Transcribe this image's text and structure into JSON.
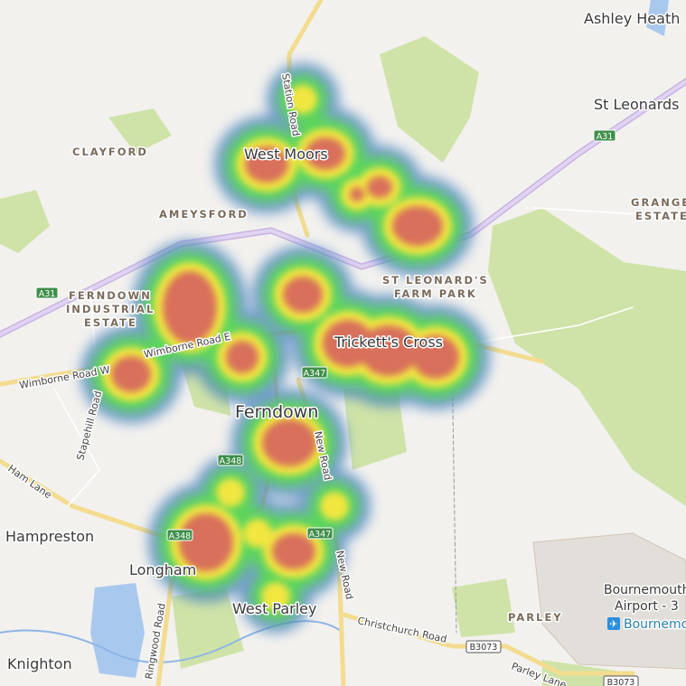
{
  "map": {
    "places": {
      "ashley_heath": "Ashley Heath",
      "st_leonards": "St Leonards",
      "clayford": "CLAYFORD",
      "west_moors": "West Moors",
      "ameysford": "AMEYSFORD",
      "grange_estate_1": "GRANGE",
      "grange_estate_2": "ESTATE",
      "st_leonards_farm_1": "ST LEONARD'S",
      "st_leonards_farm_2": "FARM PARK",
      "ferndown_ind_1": "FERNDOWN",
      "ferndown_ind_2": "INDUSTRIAL",
      "ferndown_ind_3": "ESTATE",
      "tricketts_cross": "Trickett's Cross",
      "ferndown": "Ferndown",
      "hampreston": "Hampreston",
      "longham": "Longham",
      "west_parley": "West Parley",
      "parley": "PARLEY",
      "knighton": "Knighton",
      "airport_1": "Bournemouth",
      "airport_2": "Airport - 3",
      "airport_poi": "Bournemouth"
    },
    "roads": {
      "station_road": "Station Road",
      "wimborne_road_w": "Wimborne Road W",
      "wimborne_road_e": "Wimborne Road E",
      "stapehill_road": "Stapehill Road",
      "ham_lane": "Ham Lane",
      "new_road_1": "New Road",
      "new_road_2": "New Road",
      "ringwood_road": "Ringwood Road",
      "christchurch_road": "Christchurch Road",
      "parley_lane": "Parley Lane"
    },
    "shields": {
      "a31_east": "A31",
      "a31_west": "A31",
      "a347_north": "A347",
      "a347_south": "A347",
      "a348_north": "A348",
      "a348_south": "A348",
      "b3073_west": "B3073",
      "b3073_east": "B3073"
    },
    "icons": {
      "airport": "airplane-icon"
    },
    "heatmap_colors": {
      "low": "#4a7fc4",
      "mid": "#5cd65c",
      "high": "#f2e640",
      "peak": "#d8705c"
    }
  }
}
